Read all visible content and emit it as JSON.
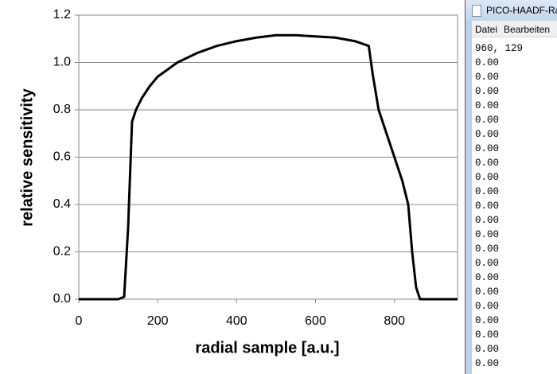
{
  "chart_data": {
    "type": "line",
    "x_label": "radial sample [a.u.]",
    "y_label": "relative sensitivity",
    "x": [
      0,
      100,
      115,
      125,
      135,
      145,
      160,
      180,
      200,
      250,
      300,
      350,
      400,
      450,
      500,
      550,
      600,
      650,
      700,
      735,
      745,
      760,
      780,
      800,
      820,
      835,
      845,
      855,
      865,
      900,
      960
    ],
    "values": [
      0,
      0,
      0.01,
      0.3,
      0.75,
      0.8,
      0.85,
      0.9,
      0.94,
      1.0,
      1.04,
      1.07,
      1.09,
      1.105,
      1.115,
      1.115,
      1.11,
      1.105,
      1.09,
      1.07,
      0.95,
      0.8,
      0.7,
      0.6,
      0.5,
      0.4,
      0.2,
      0.05,
      0,
      0,
      0
    ],
    "color": "#000000",
    "xlim": [
      0,
      960
    ],
    "xticks": [
      0,
      200,
      400,
      600,
      800
    ],
    "ylim": [
      0,
      1.2
    ],
    "yticks": [
      {
        "value": 0,
        "label": "0.0"
      },
      0.2,
      0.4,
      0.6,
      0.8,
      {
        "value": 1,
        "label": "1.0"
      },
      1.2
    ],
    "grid": true
  },
  "window": {
    "title": "PICO-HAADF-Ra",
    "menu": [
      "Datei",
      "Bearbeiten"
    ],
    "lines": [
      "960, 129",
      "0.00",
      "0.00",
      "0.00",
      "0.00",
      "0.00",
      "0.00",
      "0.00",
      "0.00",
      "0.00",
      "0.00",
      "0.00",
      "0.00",
      "0.00",
      "0.00",
      "0.00",
      "0.00",
      "0.00",
      "0.00",
      "0.00",
      "0.00",
      "0.00",
      "0.00"
    ]
  }
}
